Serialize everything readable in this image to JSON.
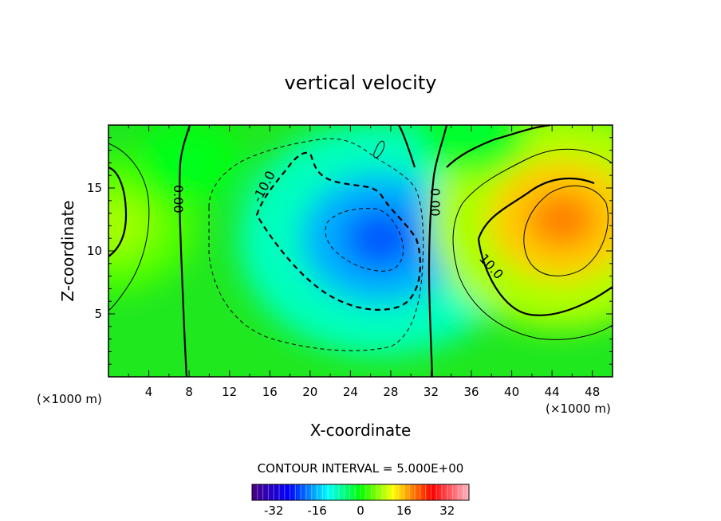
{
  "chart_data": {
    "type": "heatmap",
    "title": "vertical velocity",
    "xlabel": "X-coordinate",
    "ylabel": "Z-coordinate",
    "x_unit": "(×1000 m)",
    "y_unit": "(×1000 m)",
    "xlim": [
      0,
      50
    ],
    "ylim": [
      0,
      20
    ],
    "x_ticks": [
      "4",
      "8",
      "12",
      "16",
      "20",
      "24",
      "28",
      "32",
      "36",
      "40",
      "44",
      "48"
    ],
    "y_ticks": [
      "5",
      "10",
      "15"
    ],
    "contour_interval_text": "CONTOUR INTERVAL = 5.000E+00",
    "contour_labels": [
      "0.00",
      "0.00",
      "-10.0",
      "10.0"
    ],
    "colorbar": {
      "range": [
        -40,
        40
      ],
      "ticks": [
        "-32",
        "-16",
        "0",
        "16",
        "32"
      ],
      "colors": [
        "#4b0082",
        "#0000ff",
        "#00ffff",
        "#00ff00",
        "#ffff00",
        "#ff0000",
        "#ffb6c1"
      ]
    },
    "field_features": [
      {
        "kind": "min",
        "x": 27,
        "z": 11,
        "value": -22
      },
      {
        "kind": "max",
        "x": 45,
        "z": 12.5,
        "value": 20
      },
      {
        "kind": "max",
        "x": 0.5,
        "z": 12,
        "value": 9
      },
      {
        "kind": "min",
        "x": 8,
        "z": 17,
        "value": -2
      },
      {
        "kind": "min",
        "x": 36,
        "z": 19.5,
        "value": -3
      }
    ]
  }
}
